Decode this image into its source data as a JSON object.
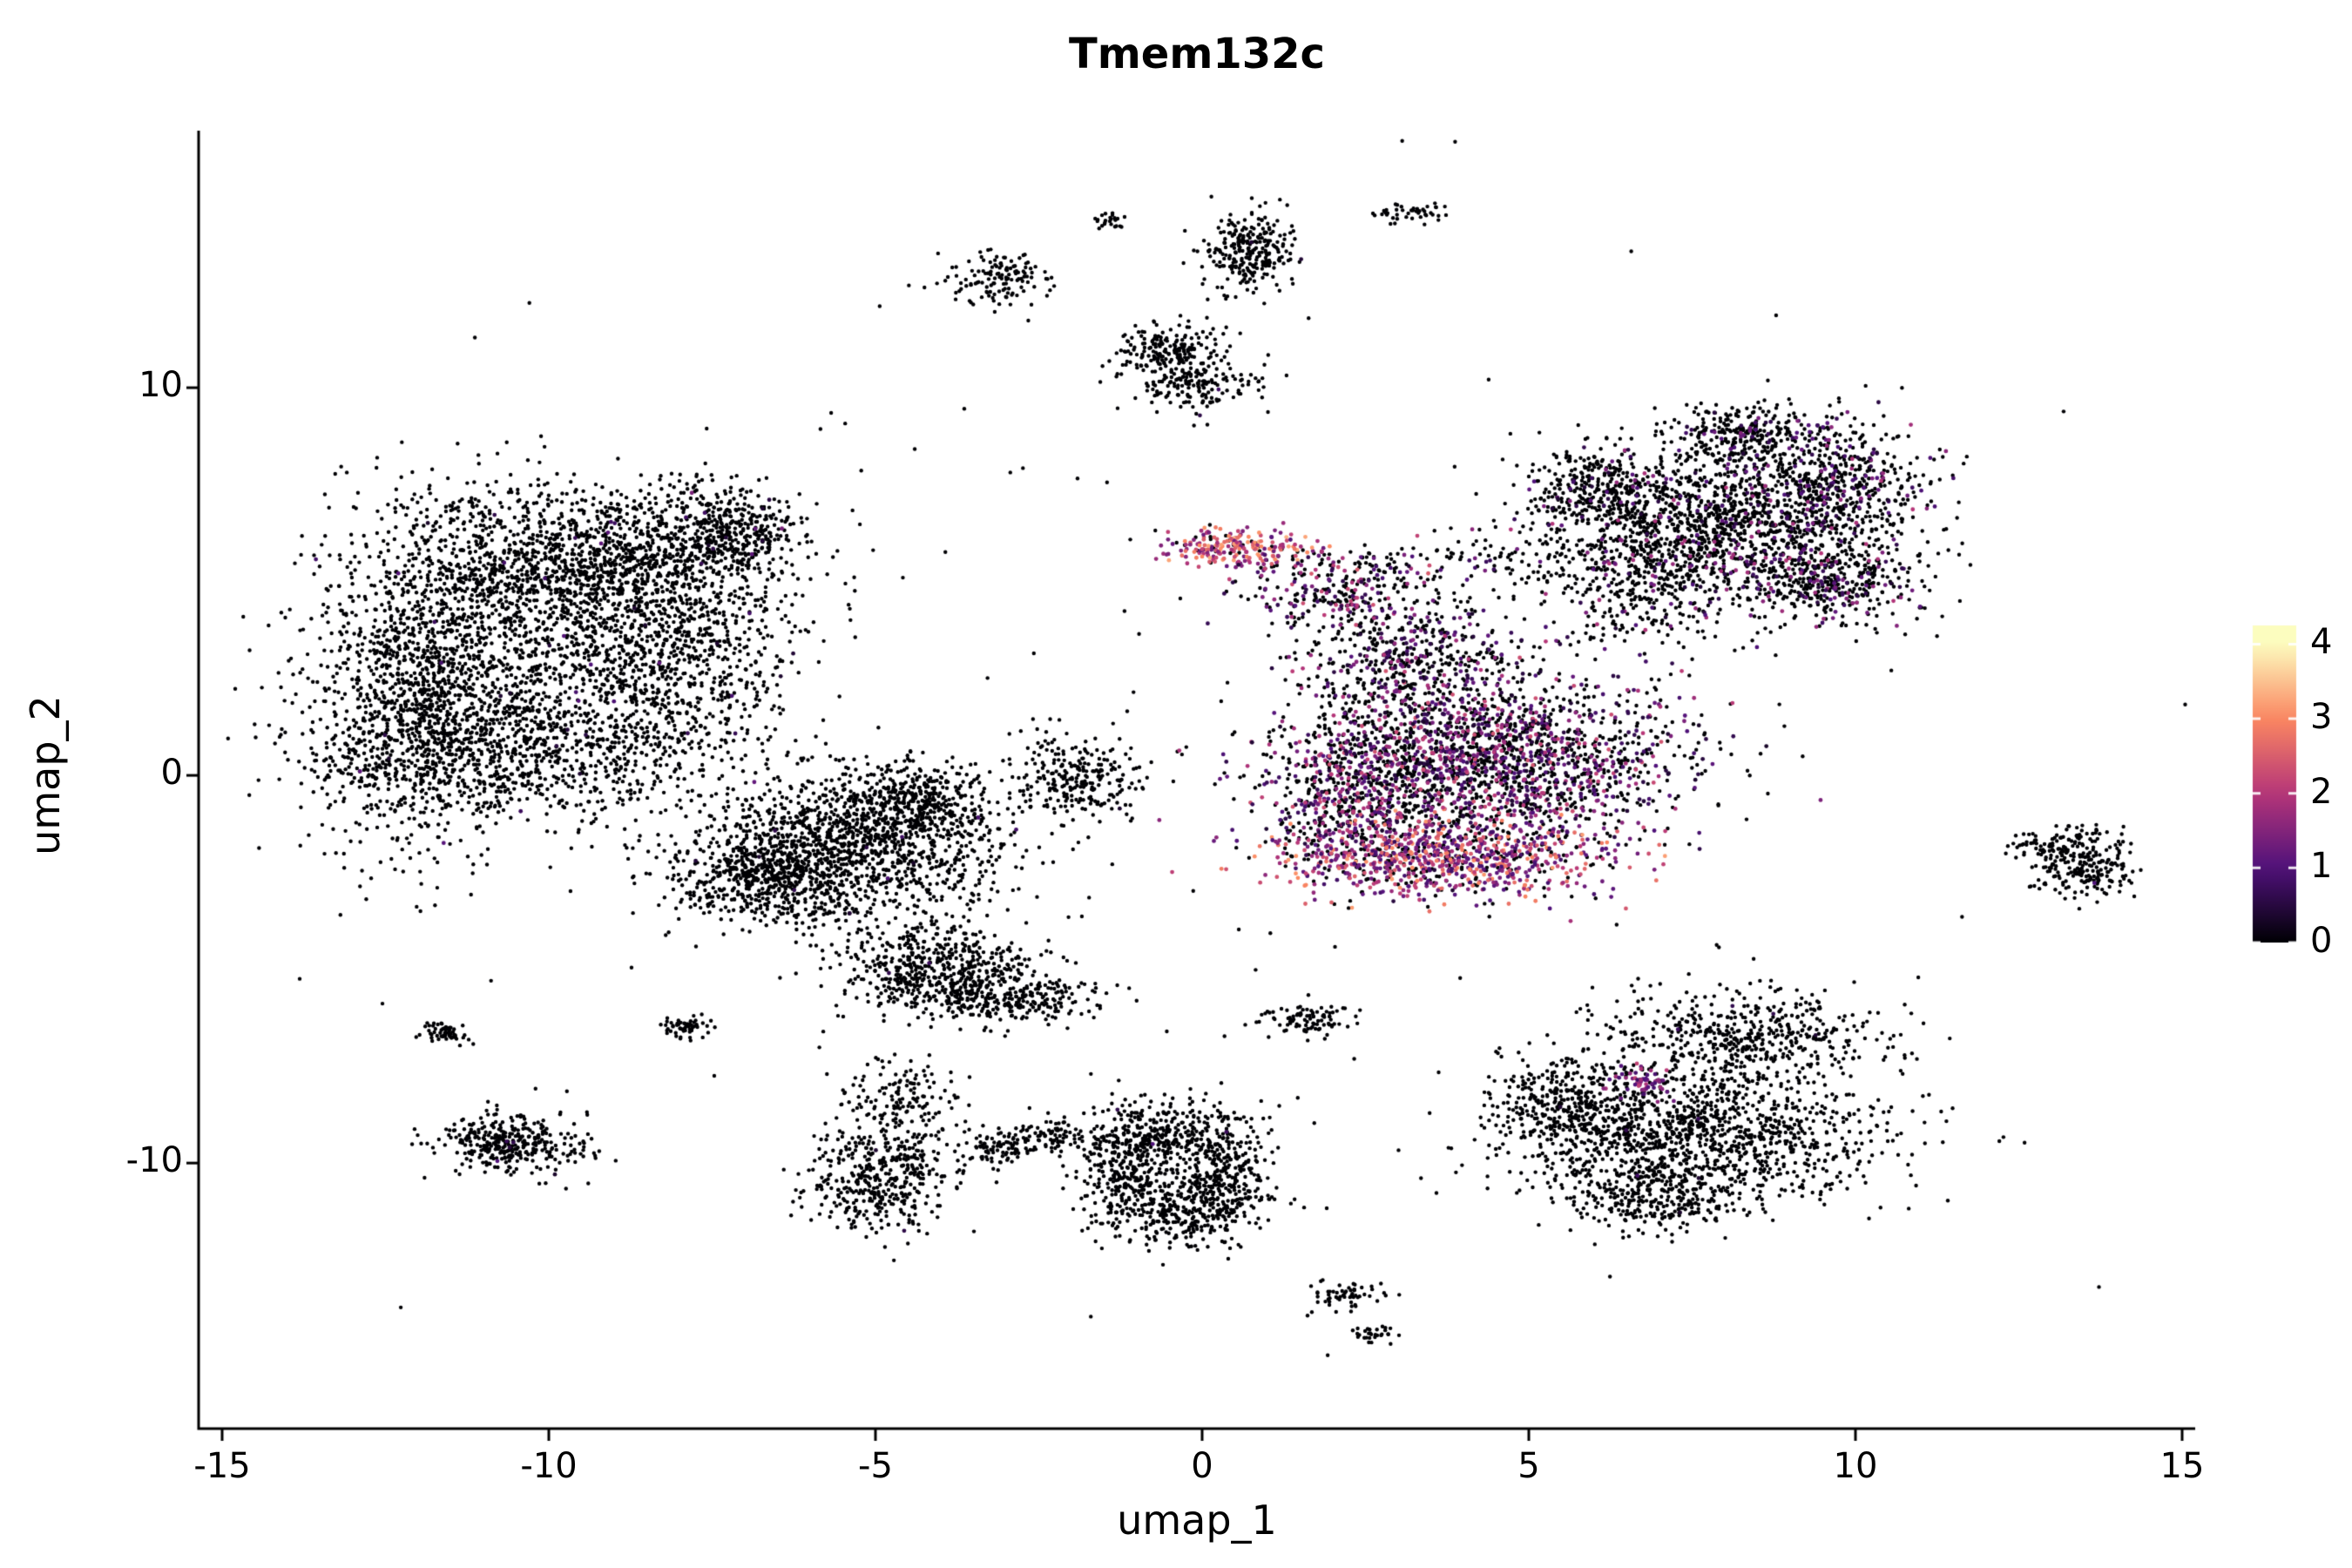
{
  "title": "Tmem132c",
  "axes": {
    "x": {
      "label": "umap_1",
      "ticks": [
        -15,
        -10,
        -5,
        0,
        5,
        10,
        15
      ],
      "domain": [
        -15.36,
        15.2
      ]
    },
    "y": {
      "label": "umap_2",
      "ticks": [
        -10,
        0,
        10
      ],
      "domain": [
        -16.85,
        16.63
      ]
    }
  },
  "legend": {
    "position": "right",
    "ticks": [
      0,
      1,
      2,
      3,
      4
    ],
    "domain": [
      0,
      4
    ]
  },
  "colors": {
    "background": "#ffffff",
    "axis": "#000000",
    "text": "#000000",
    "colormap_stops": [
      "#000004",
      "#50127B",
      "#B63679",
      "#FB8761",
      "#FCFDBF"
    ]
  },
  "chart_data": {
    "type": "scatter",
    "title": "Tmem132c",
    "xlabel": "umap_1",
    "ylabel": "umap_2",
    "xlim": [
      -15.36,
      15.2
    ],
    "ylim": [
      -16.85,
      16.63
    ],
    "grid": false,
    "legend_position": "right",
    "color_scale": {
      "name": "magma",
      "domain": [
        0,
        4
      ]
    },
    "point_radius_px": 2.2,
    "seed": 42,
    "clusters": [
      {
        "name": "left-blob-west",
        "cx": -12.0,
        "cy": 2.2,
        "sx": 0.8,
        "sy": 2.0,
        "n": 1100,
        "f": 0.01,
        "lo": 0.3,
        "hi": 1.2
      },
      {
        "name": "left-blob-north",
        "cx": -9.6,
        "cy": 5.6,
        "sx": 1.5,
        "sy": 1.0,
        "n": 1400,
        "f": 0.01,
        "lo": 0.3,
        "hi": 1.2
      },
      {
        "name": "left-blob-east",
        "cx": -8.2,
        "cy": 3.2,
        "sx": 1.0,
        "sy": 1.4,
        "n": 800,
        "f": 0.01,
        "lo": 0.3,
        "hi": 1.2
      },
      {
        "name": "left-blob-south",
        "cx": -10.4,
        "cy": 0.6,
        "sx": 1.6,
        "sy": 0.9,
        "n": 1000,
        "f": 0.01,
        "lo": 0.3,
        "hi": 1.2
      },
      {
        "name": "left-blob-core",
        "cx": -10.4,
        "cy": 3.2,
        "sx": 1.4,
        "sy": 1.4,
        "n": 600,
        "f": 0.005,
        "lo": 0.3,
        "hi": 1.0
      },
      {
        "name": "left-blob-knob",
        "cx": -7.3,
        "cy": 6.2,
        "sx": 0.55,
        "sy": 0.6,
        "n": 380,
        "f": 0.02,
        "lo": 0.3,
        "hi": 1.5
      },
      {
        "name": "mid-left-main",
        "cx": -5.4,
        "cy": -1.9,
        "sx": 1.2,
        "sy": 0.9,
        "n": 1300,
        "f": 0.005,
        "lo": 0.3,
        "hi": 1.0
      },
      {
        "name": "mid-left-west",
        "cx": -6.7,
        "cy": -2.7,
        "sx": 0.7,
        "sy": 0.55,
        "n": 450,
        "f": 0.005,
        "lo": 0.3,
        "hi": 1.0
      },
      {
        "name": "mid-left-north",
        "cx": -4.4,
        "cy": -0.6,
        "sx": 0.65,
        "sy": 0.5,
        "n": 350,
        "f": 0.005,
        "lo": 0.3,
        "hi": 1.0
      },
      {
        "name": "mid-left-tail",
        "cx": -4.1,
        "cy": -4.9,
        "sx": 0.7,
        "sy": 0.55,
        "n": 480,
        "f": 0.005,
        "lo": 0.3,
        "hi": 1.0
      },
      {
        "name": "mid-left-hook",
        "cx": -3.1,
        "cy": -5.7,
        "sx": 0.8,
        "sy": 0.35,
        "n": 320,
        "f": 0.005,
        "lo": 0.3,
        "hi": 1.0
      },
      {
        "name": "small-left-cluster",
        "cx": -1.9,
        "cy": -0.1,
        "sx": 0.5,
        "sy": 0.55,
        "n": 260,
        "f": 0.01,
        "lo": 0.3,
        "hi": 1.0
      },
      {
        "name": "top-streak",
        "cx": -3.1,
        "cy": 12.8,
        "sx": 0.4,
        "sy": 0.35,
        "n": 130,
        "f": 0,
        "lo": 0,
        "hi": 0
      },
      {
        "name": "top-tiny",
        "cx": -1.4,
        "cy": 14.3,
        "sx": 0.12,
        "sy": 0.1,
        "n": 25,
        "f": 0,
        "lo": 0,
        "hi": 0
      },
      {
        "name": "top-blob",
        "cx": 0.75,
        "cy": 13.5,
        "sx": 0.35,
        "sy": 0.5,
        "n": 270,
        "f": 0.01,
        "lo": 0.3,
        "hi": 1.0
      },
      {
        "name": "top-right-streak",
        "cx": 3.1,
        "cy": 14.5,
        "sx": 0.3,
        "sy": 0.12,
        "n": 45,
        "f": 0,
        "lo": 0,
        "hi": 0
      },
      {
        "name": "upper-small-a",
        "cx": -0.5,
        "cy": 10.9,
        "sx": 0.4,
        "sy": 0.35,
        "n": 210,
        "f": 0.01,
        "lo": 0.3,
        "hi": 1.0
      },
      {
        "name": "upper-small-b",
        "cx": -0.15,
        "cy": 10.05,
        "sx": 0.5,
        "sy": 0.3,
        "n": 150,
        "f": 0.01,
        "lo": 0.3,
        "hi": 1.0
      },
      {
        "name": "central-main",
        "cx": 4.3,
        "cy": 0.4,
        "sx": 1.5,
        "sy": 1.1,
        "n": 2100,
        "f": 0.45,
        "lo": 0.3,
        "hi": 2.4
      },
      {
        "name": "central-bottom-bright",
        "cx": 3.6,
        "cy": -2.1,
        "sx": 1.3,
        "sy": 0.5,
        "n": 900,
        "f": 0.8,
        "lo": 0.8,
        "hi": 3.2
      },
      {
        "name": "central-west",
        "cx": 2.3,
        "cy": -0.6,
        "sx": 0.6,
        "sy": 0.9,
        "n": 420,
        "f": 0.5,
        "lo": 0.4,
        "hi": 2.4
      },
      {
        "name": "central-top",
        "cx": 3.2,
        "cy": 3.1,
        "sx": 0.9,
        "sy": 0.8,
        "n": 480,
        "f": 0.3,
        "lo": 0.3,
        "hi": 2.0
      },
      {
        "name": "central-streak-bright",
        "cx": 0.55,
        "cy": 5.9,
        "sx": 0.6,
        "sy": 0.25,
        "n": 230,
        "f": 0.85,
        "lo": 1.2,
        "hi": 3.4
      },
      {
        "name": "central-connector",
        "cx": 1.9,
        "cy": 4.7,
        "sx": 0.8,
        "sy": 0.5,
        "n": 240,
        "f": 0.5,
        "lo": 0.5,
        "hi": 2.5
      },
      {
        "name": "central-band",
        "cx": 4.1,
        "cy": 5.5,
        "sx": 1.5,
        "sy": 0.28,
        "n": 150,
        "f": 0.15,
        "lo": 0.3,
        "hi": 1.5
      },
      {
        "name": "upper-right-main",
        "cx": 7.8,
        "cy": 6.4,
        "sx": 1.3,
        "sy": 1.0,
        "n": 1500,
        "f": 0.12,
        "lo": 0.4,
        "hi": 2.0
      },
      {
        "name": "upper-right-east",
        "cx": 9.7,
        "cy": 7.6,
        "sx": 0.7,
        "sy": 0.8,
        "n": 480,
        "f": 0.2,
        "lo": 0.4,
        "hi": 2.0
      },
      {
        "name": "upper-right-southeast",
        "cx": 9.6,
        "cy": 5.0,
        "sx": 0.7,
        "sy": 0.6,
        "n": 400,
        "f": 0.25,
        "lo": 0.4,
        "hi": 2.0
      },
      {
        "name": "upper-right-top",
        "cx": 8.3,
        "cy": 8.8,
        "sx": 0.55,
        "sy": 0.4,
        "n": 260,
        "f": 0.1,
        "lo": 0.4,
        "hi": 1.5
      },
      {
        "name": "upper-right-west",
        "cx": 6.0,
        "cy": 7.5,
        "sx": 0.55,
        "sy": 0.5,
        "n": 260,
        "f": 0.1,
        "lo": 0.4,
        "hi": 1.5
      },
      {
        "name": "upper-right-bridge",
        "cx": 6.6,
        "cy": 4.6,
        "sx": 0.7,
        "sy": 0.7,
        "n": 200,
        "f": 0.2,
        "lo": 0.4,
        "hi": 2.0
      },
      {
        "name": "right-small",
        "cx": 13.5,
        "cy": -2.3,
        "sx": 0.4,
        "sy": 0.45,
        "n": 230,
        "f": 0.01,
        "lo": 0.3,
        "hi": 1.0
      },
      {
        "name": "right-small-tail",
        "cx": 12.95,
        "cy": -1.8,
        "sx": 0.3,
        "sy": 0.2,
        "n": 60,
        "f": 0,
        "lo": 0,
        "hi": 0
      },
      {
        "name": "bottom-right-main",
        "cx": 7.6,
        "cy": -9.3,
        "sx": 1.4,
        "sy": 0.9,
        "n": 1250,
        "f": 0.005,
        "lo": 0.3,
        "hi": 1.0
      },
      {
        "name": "bottom-right-upper",
        "cx": 8.3,
        "cy": -6.7,
        "sx": 1.1,
        "sy": 0.6,
        "n": 520,
        "f": 0.01,
        "lo": 0.3,
        "hi": 1.2
      },
      {
        "name": "bottom-right-west",
        "cx": 5.5,
        "cy": -8.6,
        "sx": 0.55,
        "sy": 0.65,
        "n": 320,
        "f": 0.005,
        "lo": 0.3,
        "hi": 1.0
      },
      {
        "name": "bottom-right-lower",
        "cx": 6.9,
        "cy": -10.9,
        "sx": 0.65,
        "sy": 0.4,
        "n": 260,
        "f": 0,
        "lo": 0,
        "hi": 0
      },
      {
        "name": "bottom-right-purple-spot",
        "cx": 6.8,
        "cy": -7.9,
        "sx": 0.22,
        "sy": 0.22,
        "n": 70,
        "f": 0.7,
        "lo": 0.8,
        "hi": 2.2
      },
      {
        "name": "bottom-mid-a",
        "cx": -0.6,
        "cy": -9.3,
        "sx": 0.7,
        "sy": 0.5,
        "n": 380,
        "f": 0.005,
        "lo": 0.3,
        "hi": 1.0
      },
      {
        "name": "bottom-mid-b",
        "cx": -0.2,
        "cy": -11.2,
        "sx": 0.6,
        "sy": 0.5,
        "n": 340,
        "f": 0,
        "lo": 0,
        "hi": 0
      },
      {
        "name": "bottom-mid-c",
        "cx": -1.2,
        "cy": -10.4,
        "sx": 0.35,
        "sy": 0.7,
        "n": 240,
        "f": 0,
        "lo": 0,
        "hi": 0
      },
      {
        "name": "bottom-mid-d",
        "cx": 0.35,
        "cy": -10.3,
        "sx": 0.3,
        "sy": 0.6,
        "n": 200,
        "f": 0,
        "lo": 0,
        "hi": 0
      },
      {
        "name": "bottom-mid-streak",
        "cx": -2.4,
        "cy": -9.4,
        "sx": 0.5,
        "sy": 0.2,
        "n": 120,
        "f": 0,
        "lo": 0,
        "hi": 0
      },
      {
        "name": "bottom-left-blob",
        "cx": -10.6,
        "cy": -9.5,
        "sx": 0.55,
        "sy": 0.4,
        "n": 360,
        "f": 0.005,
        "lo": 0.3,
        "hi": 1.0
      },
      {
        "name": "bottom-left-tiny",
        "cx": -11.6,
        "cy": -6.6,
        "sx": 0.22,
        "sy": 0.15,
        "n": 60,
        "f": 0,
        "lo": 0,
        "hi": 0
      },
      {
        "name": "lower-left-blob",
        "cx": -4.9,
        "cy": -10.4,
        "sx": 0.55,
        "sy": 0.75,
        "n": 450,
        "f": 0.005,
        "lo": 0.3,
        "hi": 1.0
      },
      {
        "name": "lower-left-sparse",
        "cx": -4.6,
        "cy": -8.4,
        "sx": 0.45,
        "sy": 0.5,
        "n": 130,
        "f": 0,
        "lo": 0,
        "hi": 0
      },
      {
        "name": "lower-left-dots",
        "cx": -3.2,
        "cy": -9.7,
        "sx": 0.3,
        "sy": 0.2,
        "n": 60,
        "f": 0,
        "lo": 0,
        "hi": 0
      },
      {
        "name": "tiny-bottom-a",
        "cx": 2.2,
        "cy": -13.4,
        "sx": 0.28,
        "sy": 0.2,
        "n": 60,
        "f": 0,
        "lo": 0,
        "hi": 0
      },
      {
        "name": "tiny-bottom-b",
        "cx": 2.6,
        "cy": -14.4,
        "sx": 0.2,
        "sy": 0.1,
        "n": 30,
        "f": 0,
        "lo": 0,
        "hi": 0
      },
      {
        "name": "small-streak",
        "cx": 1.6,
        "cy": -6.3,
        "sx": 0.4,
        "sy": 0.18,
        "n": 95,
        "f": 0,
        "lo": 0,
        "hi": 0
      },
      {
        "name": "tiny-left",
        "cx": -7.9,
        "cy": -6.5,
        "sx": 0.22,
        "sy": 0.16,
        "n": 55,
        "f": 0,
        "lo": 0,
        "hi": 0
      },
      {
        "name": "scatter-noise",
        "cx": 0.5,
        "cy": 0.0,
        "sx": 7.5,
        "sy": 6.5,
        "n": 140,
        "f": 0.02,
        "lo": 0.3,
        "hi": 1.5
      }
    ]
  }
}
